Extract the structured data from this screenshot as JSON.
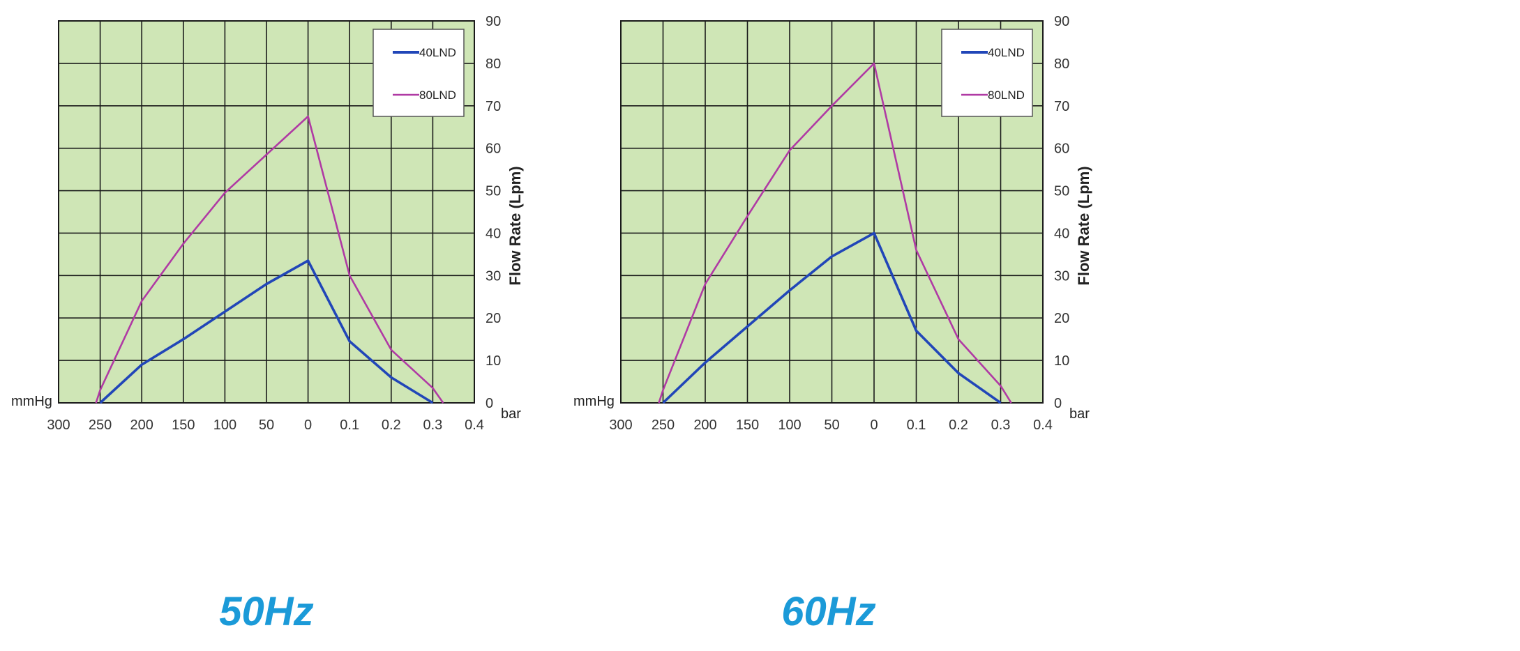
{
  "colors": {
    "plot_bg": "#cfe6b6",
    "grid": "#1a1a1a",
    "series_40": "#2146b8",
    "series_80": "#b03aa4",
    "caption": "#1b9ad8"
  },
  "chart_data": [
    {
      "type": "line",
      "title": "",
      "caption": "50Hz",
      "ylabel": "Flow Rate (Lpm)",
      "x_left_unit": "mmHg",
      "x_right_unit": "bar",
      "x_ticks": [
        "300",
        "250",
        "200",
        "150",
        "100",
        "50",
        "0",
        "0.1",
        "0.2",
        "0.3",
        "0.4"
      ],
      "y_ticks": [
        "0",
        "10",
        "20",
        "30",
        "40",
        "50",
        "60",
        "70",
        "80",
        "90"
      ],
      "ylim": [
        0,
        90
      ],
      "grid": true,
      "legend_position": "top-right",
      "series": [
        {
          "name": "40LND",
          "color": "#2146b8",
          "points": [
            [
              "250 mmHg",
              0
            ],
            [
              "200 mmHg",
              9
            ],
            [
              "150 mmHg",
              15
            ],
            [
              "100 mmHg",
              21.5
            ],
            [
              "50 mmHg",
              28
            ],
            [
              "0",
              33.5
            ],
            [
              "0.1 bar",
              14.5
            ],
            [
              "0.2 bar",
              6
            ],
            [
              "0.3 bar",
              0
            ]
          ]
        },
        {
          "name": "80LND",
          "color": "#b03aa4",
          "points": [
            [
              "255 mmHg",
              0
            ],
            [
              "250 mmHg",
              3
            ],
            [
              "200 mmHg",
              24
            ],
            [
              "150 mmHg",
              37.5
            ],
            [
              "100 mmHg",
              49.5
            ],
            [
              "50 mmHg",
              58.5
            ],
            [
              "0",
              67.5
            ],
            [
              "0.1 bar",
              30
            ],
            [
              "0.2 bar",
              12.5
            ],
            [
              "0.3 bar",
              3.5
            ],
            [
              "0.325 bar",
              0
            ]
          ]
        }
      ]
    },
    {
      "type": "line",
      "title": "",
      "caption": "60Hz",
      "ylabel": "Flow Rate (Lpm)",
      "x_left_unit": "mmHg",
      "x_right_unit": "bar",
      "x_ticks": [
        "300",
        "250",
        "200",
        "150",
        "100",
        "50",
        "0",
        "0.1",
        "0.2",
        "0.3",
        "0.4"
      ],
      "y_ticks": [
        "0",
        "10",
        "20",
        "30",
        "40",
        "50",
        "60",
        "70",
        "80",
        "90"
      ],
      "ylim": [
        0,
        90
      ],
      "grid": true,
      "legend_position": "top-right",
      "series": [
        {
          "name": "40LND",
          "color": "#2146b8",
          "points": [
            [
              "250 mmHg",
              0
            ],
            [
              "200 mmHg",
              9.5
            ],
            [
              "150 mmHg",
              18
            ],
            [
              "100 mmHg",
              26.5
            ],
            [
              "50 mmHg",
              34.5
            ],
            [
              "0",
              40
            ],
            [
              "0.1 bar",
              17
            ],
            [
              "0.2 bar",
              7
            ],
            [
              "0.3 bar",
              0
            ]
          ]
        },
        {
          "name": "80LND",
          "color": "#b03aa4",
          "points": [
            [
              "255 mmHg",
              0
            ],
            [
              "250 mmHg",
              3
            ],
            [
              "200 mmHg",
              28
            ],
            [
              "150 mmHg",
              44
            ],
            [
              "100 mmHg",
              59.5
            ],
            [
              "50 mmHg",
              70
            ],
            [
              "0",
              80
            ],
            [
              "0.1 bar",
              36
            ],
            [
              "0.2 bar",
              15
            ],
            [
              "0.3 bar",
              4
            ],
            [
              "0.325 bar",
              0
            ]
          ]
        }
      ]
    }
  ]
}
